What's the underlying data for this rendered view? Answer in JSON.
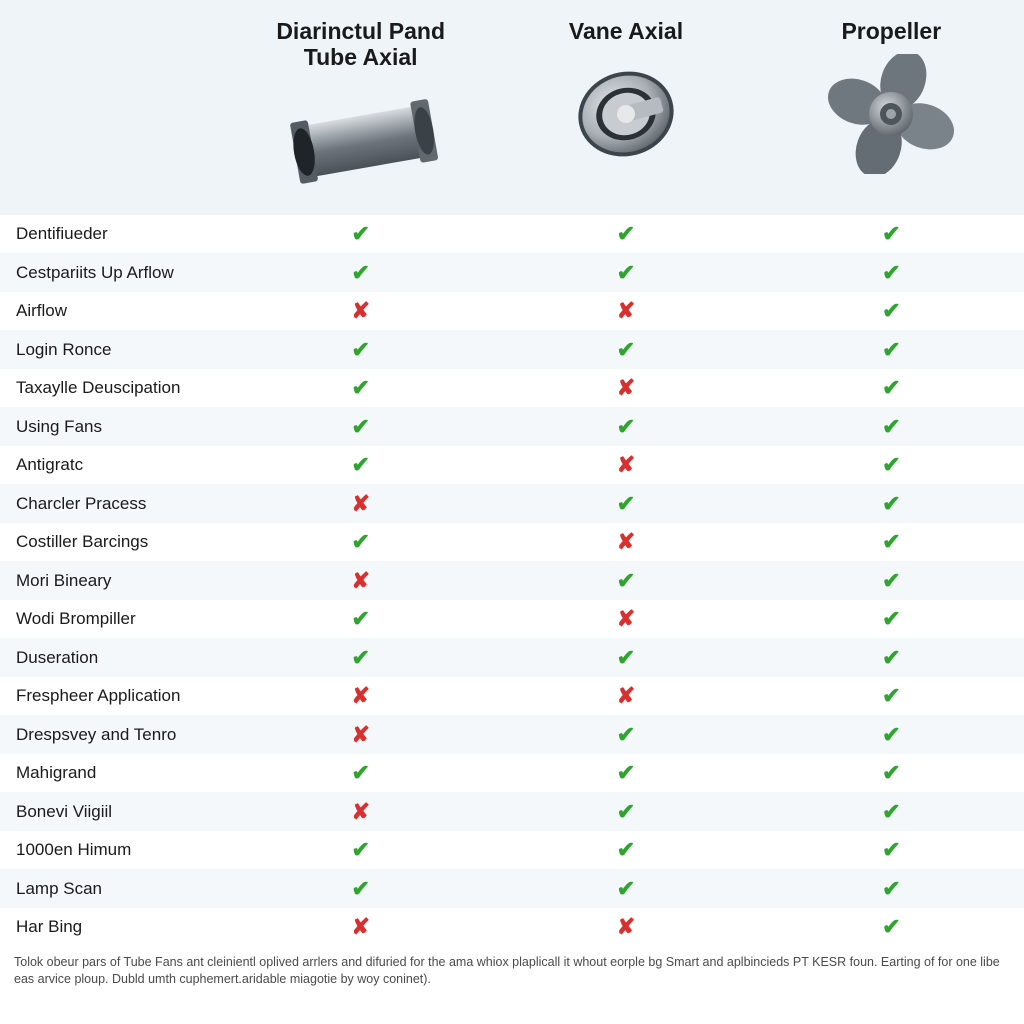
{
  "type": "comparison-table",
  "background_color": "#ffffff",
  "header_background": "#eef4f7",
  "row_alt_background": "#f4f8fa",
  "check_color": "#2fa52f",
  "cross_color": "#d82f2f",
  "title_fontsize": 23,
  "title_fontweight": 700,
  "label_fontsize": 17,
  "mark_fontsize": 22,
  "footer_fontsize": 12.5,
  "columns": [
    {
      "title_line1": "Diarinctul Pand",
      "title_line2": "Tube Axial",
      "image": "tube-axial"
    },
    {
      "title_line1": "Vane Axial",
      "title_line2": "",
      "image": "vane-axial"
    },
    {
      "title_line1": "Propeller",
      "title_line2": "",
      "image": "propeller"
    }
  ],
  "rows": [
    {
      "label": "Dentifiueder",
      "values": [
        "check",
        "check",
        "check"
      ]
    },
    {
      "label": "Cestpariits Up Arflow",
      "values": [
        "check",
        "check",
        "check"
      ]
    },
    {
      "label": "Airflow",
      "values": [
        "cross",
        "cross",
        "check"
      ]
    },
    {
      "label": "Login Ronce",
      "values": [
        "check",
        "check",
        "check"
      ]
    },
    {
      "label": "Taxaylle Deuscipation",
      "values": [
        "check",
        "cross",
        "check"
      ]
    },
    {
      "label": "Using Fans",
      "values": [
        "check",
        "check",
        "check"
      ]
    },
    {
      "label": "Antigratc",
      "values": [
        "check",
        "cross",
        "check"
      ]
    },
    {
      "label": "Charcler Pracess",
      "values": [
        "cross",
        "check",
        "check"
      ]
    },
    {
      "label": "Costiller Barcings",
      "values": [
        "check",
        "cross",
        "check"
      ]
    },
    {
      "label": "Mori Bineary",
      "values": [
        "cross",
        "check",
        "check"
      ]
    },
    {
      "label": "Wodi Brompiller",
      "values": [
        "check",
        "cross",
        "check"
      ]
    },
    {
      "label": "Duseration",
      "values": [
        "check",
        "check",
        "check"
      ]
    },
    {
      "label": "Frespheer Application",
      "values": [
        "cross",
        "cross",
        "check"
      ]
    },
    {
      "label": "Drespsvey and Tenro",
      "values": [
        "cross",
        "check",
        "check"
      ]
    },
    {
      "label": "Mahigrand",
      "values": [
        "check",
        "check",
        "check"
      ]
    },
    {
      "label": "Bonevi Viigiil",
      "values": [
        "cross",
        "check",
        "check"
      ]
    },
    {
      "label": "1000en Himum",
      "values": [
        "check",
        "check",
        "check"
      ]
    },
    {
      "label": "Lamp Scan",
      "values": [
        "check",
        "check",
        "check"
      ]
    },
    {
      "label": "Har Bing",
      "values": [
        "cross",
        "cross",
        "check"
      ]
    }
  ],
  "footer_text": "Tolok obeur pars of Tube Fans ant cleinientl oplived arrlers and difuried for the ama whiox plaplicall it whout eorple bg Smart and aplbincieds PT KESR foun. Earting of for one libe eas arvice ploup. Dubld umth cuphemert.aridable miagotie by woy coninet)."
}
